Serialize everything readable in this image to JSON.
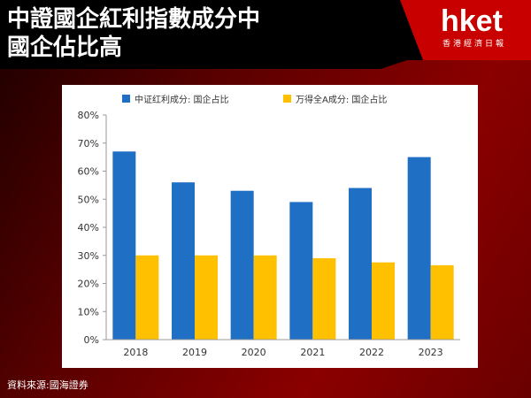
{
  "header": {
    "title_line1": "中證國企紅利指數成分中",
    "title_line2": "國企佔比高"
  },
  "logo": {
    "brand": "hket",
    "tagline": "香港經濟日報"
  },
  "footer": {
    "source": "資料來源:國海證券"
  },
  "colors": {
    "series1": "#1f6fc5",
    "series2": "#ffc000",
    "header_accent": "#c80000"
  },
  "chart_data": {
    "type": "bar",
    "categories": [
      "2018",
      "2019",
      "2020",
      "2021",
      "2022",
      "2023"
    ],
    "series": [
      {
        "name": "中证红利成分: 国企占比",
        "values": [
          67,
          56,
          53,
          49,
          54,
          65
        ]
      },
      {
        "name": "万得全A成分: 国企占比",
        "values": [
          30,
          30,
          30,
          29,
          27.5,
          26.5
        ]
      }
    ],
    "ylim": [
      0,
      80
    ],
    "yticks": [
      "0%",
      "10%",
      "20%",
      "30%",
      "40%",
      "50%",
      "60%",
      "70%",
      "80%"
    ],
    "grid": false,
    "legend": "top"
  }
}
